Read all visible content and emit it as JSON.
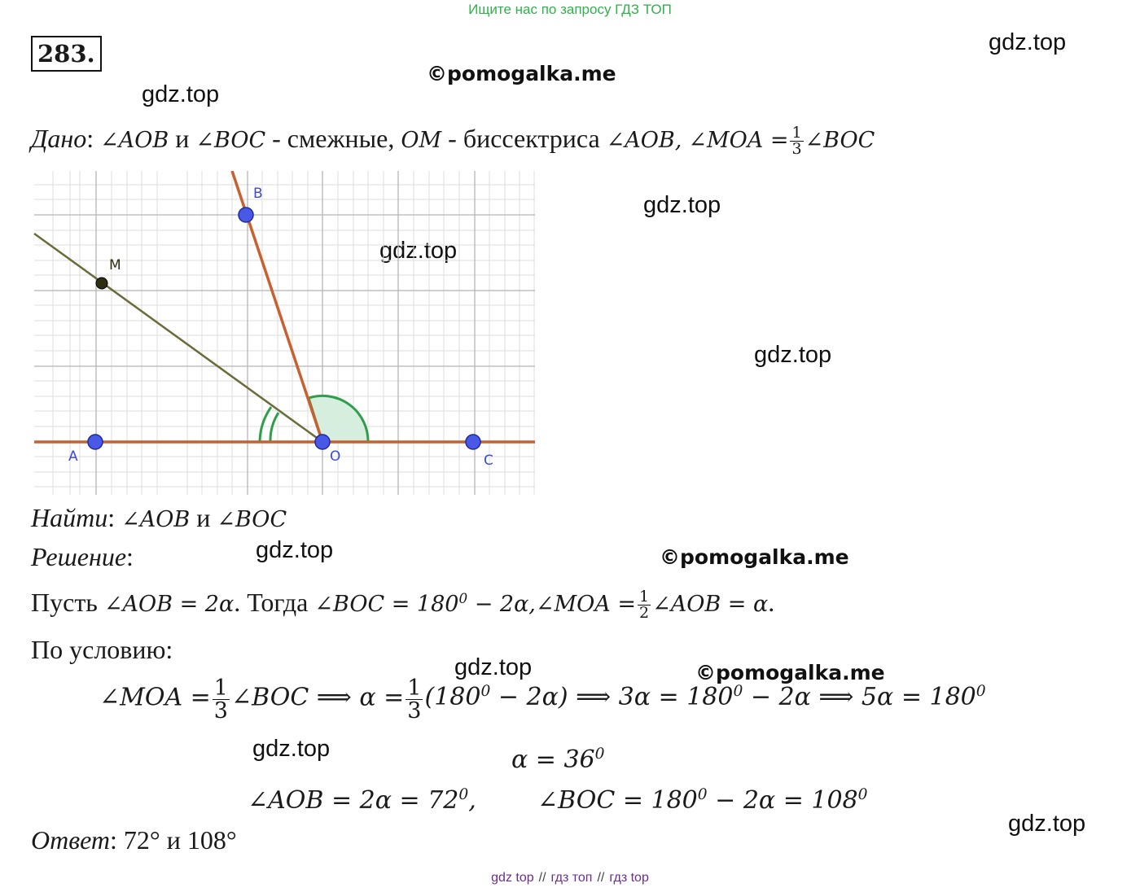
{
  "banner": "Ищите нас по запросу ГДЗ ТОП",
  "problem_number": "283.",
  "watermarks": {
    "gdz": "gdz.top",
    "pomogalka": "©pomogalka.me"
  },
  "given": {
    "label": "Дано",
    "colon": ":",
    "ang_aob": "∠AOB",
    "and": " и ",
    "ang_boc": "∠BOC",
    "adjacent": " - смежные, ",
    "om": "OM",
    "bisector": " - биссектриса ",
    "ang_aob2": "∠AOB,",
    "eq_left": "∠MOA =",
    "frac_num": "1",
    "frac_den": "3",
    "eq_right": "∠BOC"
  },
  "figure": {
    "labels": {
      "A": "A",
      "B": "B",
      "M": "M",
      "O": "O",
      "C": "C"
    }
  },
  "find": {
    "label": "Найти",
    "colon": ":",
    "a": "∠AOB",
    "and": " и ",
    "b": "∠BOC"
  },
  "solution": {
    "label": "Решение",
    "colon": ":",
    "let": "Пусть ",
    "e1": "∠AOB = 2α",
    "then": ". Тогда ",
    "e2": "∠BOC = 180",
    "e2b": " − 2α,∠MOA =",
    "half_num": "1",
    "half_den": "2",
    "e3": "∠AOB = α",
    "dot": ".",
    "by_condition": "По условию:",
    "l1a": "∠MOA =",
    "l1_num": "1",
    "l1_den": "3",
    "l1b": "∠BOC  ⟹ α =",
    "l1c": "(180",
    "l1d": " − 2α) ⟹ 3α = 180",
    "l1e": " − 2α ⟹ 5α = 180",
    "alpha": "α = 36",
    "l3a": "∠AOB = 2α = 72",
    "l3b": ",",
    "l3c": "∠BOC = 180",
    "l3d": " − 2α = 108",
    "deg": "0"
  },
  "answer": {
    "label": "Ответ",
    "colon": ":",
    "text": " 72° и 108°"
  },
  "footer": {
    "a": "gdz top",
    "sep": "//",
    "b": "гдз топ",
    "c": "гдз top"
  }
}
